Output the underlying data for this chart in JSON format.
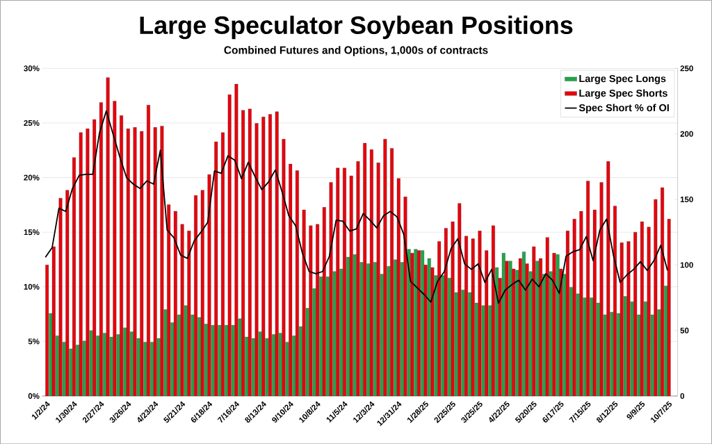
{
  "chart_data": {
    "type": "bar",
    "title": "Large Speculator Soybean Positions",
    "subtitle": "Combined Futures and Options, 1,000s of contracts",
    "categories": [
      "1/2/24",
      null,
      null,
      null,
      "1/30/24",
      null,
      null,
      null,
      "2/27/24",
      null,
      null,
      null,
      "3/26/24",
      null,
      null,
      null,
      "4/23/24",
      null,
      null,
      null,
      "5/21/24",
      null,
      null,
      null,
      "6/18/24",
      null,
      null,
      null,
      "7/16/24",
      null,
      null,
      null,
      "8/13/24",
      null,
      null,
      null,
      "9/10/24",
      null,
      null,
      null,
      "10/8/24",
      null,
      null,
      null,
      "11/5/24",
      null,
      null,
      null,
      "12/3/24",
      null,
      null,
      null,
      "12/31/24",
      null,
      null,
      null,
      "1/28/25",
      null,
      null,
      null,
      "2/25/25",
      null,
      null,
      null,
      "3/25/25",
      null,
      null,
      null,
      "4/22/25",
      null,
      null,
      null,
      "5/20/25",
      null,
      null,
      null,
      "6/17/25",
      null,
      null,
      null,
      "7/15/25",
      null,
      null,
      null,
      "8/12/25",
      null,
      null,
      null,
      "9/9/25",
      null,
      null,
      null,
      "10/7/25"
    ],
    "series": [
      {
        "name": "Large Spec Longs",
        "color": "#1fa64a",
        "axis": "y2",
        "values": [
          null,
          63,
          46,
          41,
          36,
          39,
          42,
          50,
          46,
          48,
          45,
          47,
          52,
          49,
          44,
          41,
          41,
          44,
          66,
          56,
          62,
          69,
          62,
          60,
          55,
          54,
          54,
          54,
          54,
          59,
          45,
          44,
          49,
          44,
          47,
          48,
          41,
          46,
          53,
          67,
          82,
          91,
          91,
          95,
          97,
          106,
          108,
          102,
          101,
          102,
          93,
          99,
          104,
          102,
          112,
          112,
          111,
          105,
          92,
          92,
          90,
          79,
          81,
          79,
          71,
          69,
          69,
          98,
          109,
          103,
          96,
          110,
          95,
          103,
          93,
          95,
          108,
          93,
          83,
          78,
          75,
          75,
          71,
          62,
          64,
          63,
          76,
          72,
          62,
          72,
          62,
          66,
          84
        ]
      },
      {
        "name": "Large Spec Shorts",
        "color": "#e8000b",
        "axis": "y2",
        "values": [
          100,
          114,
          151,
          157,
          182,
          201,
          204,
          211,
          224,
          243,
          225,
          214,
          204,
          205,
          202,
          222,
          205,
          206,
          146,
          141,
          131,
          126,
          153,
          157,
          169,
          194,
          201,
          230,
          238,
          218,
          219,
          208,
          213,
          215,
          217,
          196,
          177,
          172,
          142,
          130,
          131,
          144,
          163,
          174,
          174,
          168,
          179,
          193,
          188,
          178,
          196,
          189,
          166,
          152,
          109,
          111,
          100,
          98,
          118,
          128,
          133,
          147,
          122,
          120,
          126,
          111,
          130,
          90,
          103,
          97,
          105,
          101,
          114,
          105,
          121,
          109,
          97,
          126,
          135,
          141,
          164,
          142,
          163,
          179,
          145,
          117,
          118,
          125,
          133,
          129,
          150,
          159,
          135
        ]
      },
      {
        "name": "Spec Short % of OI",
        "type": "line",
        "color": "#000000",
        "values": [
          12.7,
          13.6,
          17.2,
          16.9,
          19.0,
          20.2,
          20.3,
          20.3,
          24.1,
          26.1,
          24.0,
          21.9,
          20.0,
          19.4,
          19.0,
          19.7,
          19.4,
          22.5,
          15.2,
          14.5,
          12.9,
          12.6,
          14.2,
          15.0,
          15.9,
          20.6,
          20.4,
          22.0,
          21.6,
          19.9,
          21.4,
          20.1,
          18.9,
          19.6,
          20.7,
          18.7,
          16.5,
          15.6,
          13.1,
          11.4,
          11.2,
          11.4,
          12.8,
          16.1,
          16.0,
          15.1,
          15.3,
          16.7,
          16.1,
          15.4,
          16.5,
          16.9,
          16.4,
          14.8,
          10.5,
          9.9,
          9.3,
          8.6,
          10.5,
          11.4,
          13.5,
          14.4,
          12.1,
          11.6,
          12.1,
          10.4,
          11.6,
          8.5,
          9.7,
          10.2,
          10.6,
          9.7,
          10.7,
          10.0,
          11.2,
          10.6,
          9.4,
          12.8,
          13.2,
          13.4,
          14.6,
          12.4,
          15.2,
          16.2,
          12.9,
          10.4,
          11.1,
          11.6,
          12.3,
          11.5,
          12.4,
          13.8,
          11.5
        ]
      }
    ],
    "ylim": [
      0,
      30
    ],
    "yticks": [
      {
        "value": 0,
        "label": "0%"
      },
      {
        "value": 5,
        "label": "5%"
      },
      {
        "value": 10,
        "label": "10%"
      },
      {
        "value": 15,
        "label": "15%"
      },
      {
        "value": 20,
        "label": "20%"
      },
      {
        "value": 25,
        "label": "25%"
      },
      {
        "value": 30,
        "label": "30%"
      }
    ],
    "y2lim": [
      0,
      250
    ],
    "y2ticks": [
      0,
      50,
      100,
      150,
      200,
      250
    ],
    "grid": "y",
    "legend": "top right"
  }
}
